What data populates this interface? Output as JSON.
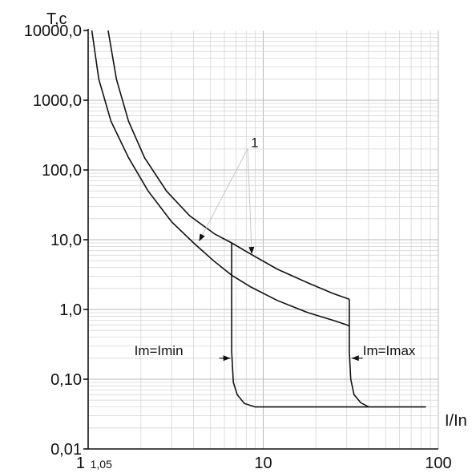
{
  "chart_data": {
    "type": "line",
    "title": "",
    "ylabel": "T,c",
    "xlabel": "I/In",
    "x_scale": "log",
    "y_scale": "log",
    "xlim": [
      1,
      100
    ],
    "ylim": [
      0.01,
      10000
    ],
    "grid": true,
    "x_ticks": [
      "1",
      "1,05",
      "10",
      "100"
    ],
    "x_tick_values": [
      1,
      1.05,
      10,
      100
    ],
    "y_ticks": [
      "0,01",
      "0,10",
      "1,0",
      "10,0",
      "100,0",
      "1000,0",
      "10000,0"
    ],
    "y_tick_values": [
      0.01,
      0.1,
      1,
      10,
      100,
      1000,
      10000
    ],
    "annotations": [
      {
        "text": "1",
        "anchor": [
          8.5,
          250
        ]
      },
      {
        "text": "Im=Imin",
        "anchor": [
          6.5,
          0.2
        ]
      },
      {
        "text": "Im=Imax",
        "anchor": [
          30,
          0.2
        ]
      }
    ],
    "series": [
      {
        "points": [
          [
            1.05,
            10000
          ],
          [
            1.15,
            2000
          ],
          [
            1.35,
            500
          ],
          [
            1.7,
            150
          ],
          [
            2.2,
            50
          ],
          [
            3,
            18
          ],
          [
            4,
            9
          ],
          [
            5.2,
            5
          ],
          [
            6.6,
            3.1
          ],
          [
            8.5,
            2.1
          ],
          [
            12,
            1.35
          ],
          [
            18,
            0.9
          ],
          [
            25,
            0.7
          ],
          [
            30,
            0.6
          ],
          [
            31,
            0.58
          ]
        ]
      },
      {
        "points": [
          [
            1.3,
            10000
          ],
          [
            1.45,
            2000
          ],
          [
            1.7,
            500
          ],
          [
            2.1,
            150
          ],
          [
            2.8,
            50
          ],
          [
            3.8,
            22
          ],
          [
            5.3,
            12
          ],
          [
            6.6,
            9
          ],
          [
            8.5,
            6.2
          ],
          [
            12,
            3.8
          ],
          [
            18,
            2.4
          ],
          [
            25,
            1.7
          ],
          [
            31,
            1.4
          ]
        ]
      },
      {
        "points": [
          [
            6.6,
            9
          ],
          [
            6.6,
            0.25
          ],
          [
            6.75,
            0.09
          ],
          [
            7.1,
            0.06
          ],
          [
            7.8,
            0.045
          ],
          [
            9,
            0.04
          ],
          [
            85,
            0.04
          ]
        ]
      },
      {
        "points": [
          [
            31,
            1.4
          ],
          [
            31,
            0.25
          ],
          [
            31.6,
            0.1
          ],
          [
            33,
            0.06
          ],
          [
            36,
            0.046
          ],
          [
            40,
            0.04
          ]
        ]
      }
    ]
  }
}
